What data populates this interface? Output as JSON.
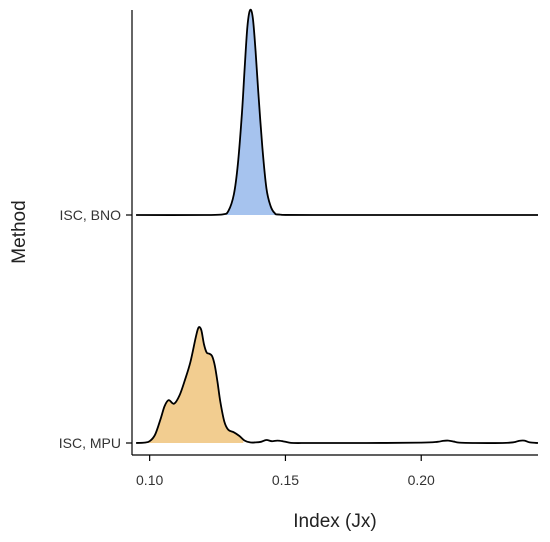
{
  "chart_data": {
    "type": "area",
    "subtype": "ridgeline-density",
    "title": "",
    "xlabel": "Index (Jx)",
    "ylabel": "Method",
    "xlim": [
      0.0935,
      0.243
    ],
    "x_ticks": [
      0.1,
      0.15,
      0.2
    ],
    "x_tick_labels": [
      "0.10",
      "0.15",
      "0.20"
    ],
    "categories": [
      "ISC, MPU",
      "ISC, BNO"
    ],
    "legend": "none",
    "grid": false,
    "series": [
      {
        "name": "ISC, BNO",
        "fill_color": "#a6c3ee",
        "fill_range": [
          0.1282,
          0.1465
        ],
        "x": [
          0.095,
          0.12,
          0.127,
          0.129,
          0.131,
          0.1325,
          0.134,
          0.135,
          0.136,
          0.137,
          0.138,
          0.139,
          0.14,
          0.1415,
          0.143,
          0.1445,
          0.146,
          0.148,
          0.16,
          0.243
        ],
        "density": [
          0,
          0,
          0.003,
          0.02,
          0.1,
          0.25,
          0.5,
          0.72,
          0.92,
          1.0,
          0.96,
          0.8,
          0.6,
          0.33,
          0.13,
          0.045,
          0.01,
          0.002,
          0,
          0
        ]
      },
      {
        "name": "ISC, MPU",
        "fill_color": "#f2cd90",
        "fill_range": [
          0.0935,
          0.1345
        ],
        "x": [
          0.095,
          0.098,
          0.1,
          0.102,
          0.104,
          0.1055,
          0.107,
          0.109,
          0.111,
          0.113,
          0.115,
          0.117,
          0.118,
          0.119,
          0.12,
          0.121,
          0.122,
          0.123,
          0.124,
          0.125,
          0.126,
          0.1275,
          0.129,
          0.131,
          0.133,
          0.135,
          0.137,
          0.139,
          0.141,
          0.143,
          0.145,
          0.147,
          0.149,
          0.151,
          0.153,
          0.16,
          0.18,
          0.2,
          0.206,
          0.208,
          0.21,
          0.212,
          0.214,
          0.22,
          0.23,
          0.234,
          0.236,
          0.238,
          0.24,
          0.243
        ],
        "density": [
          0,
          0.003,
          0.015,
          0.07,
          0.2,
          0.31,
          0.36,
          0.33,
          0.4,
          0.53,
          0.68,
          0.89,
          0.97,
          0.95,
          0.83,
          0.76,
          0.75,
          0.73,
          0.65,
          0.51,
          0.35,
          0.18,
          0.11,
          0.09,
          0.06,
          0.02,
          0.005,
          0.005,
          0.01,
          0.025,
          0.015,
          0.02,
          0.015,
          0.005,
          0,
          0,
          0,
          0.003,
          0.01,
          0.018,
          0.02,
          0.012,
          0.003,
          0,
          0,
          0.006,
          0.018,
          0.02,
          0.005,
          0
        ]
      }
    ]
  }
}
